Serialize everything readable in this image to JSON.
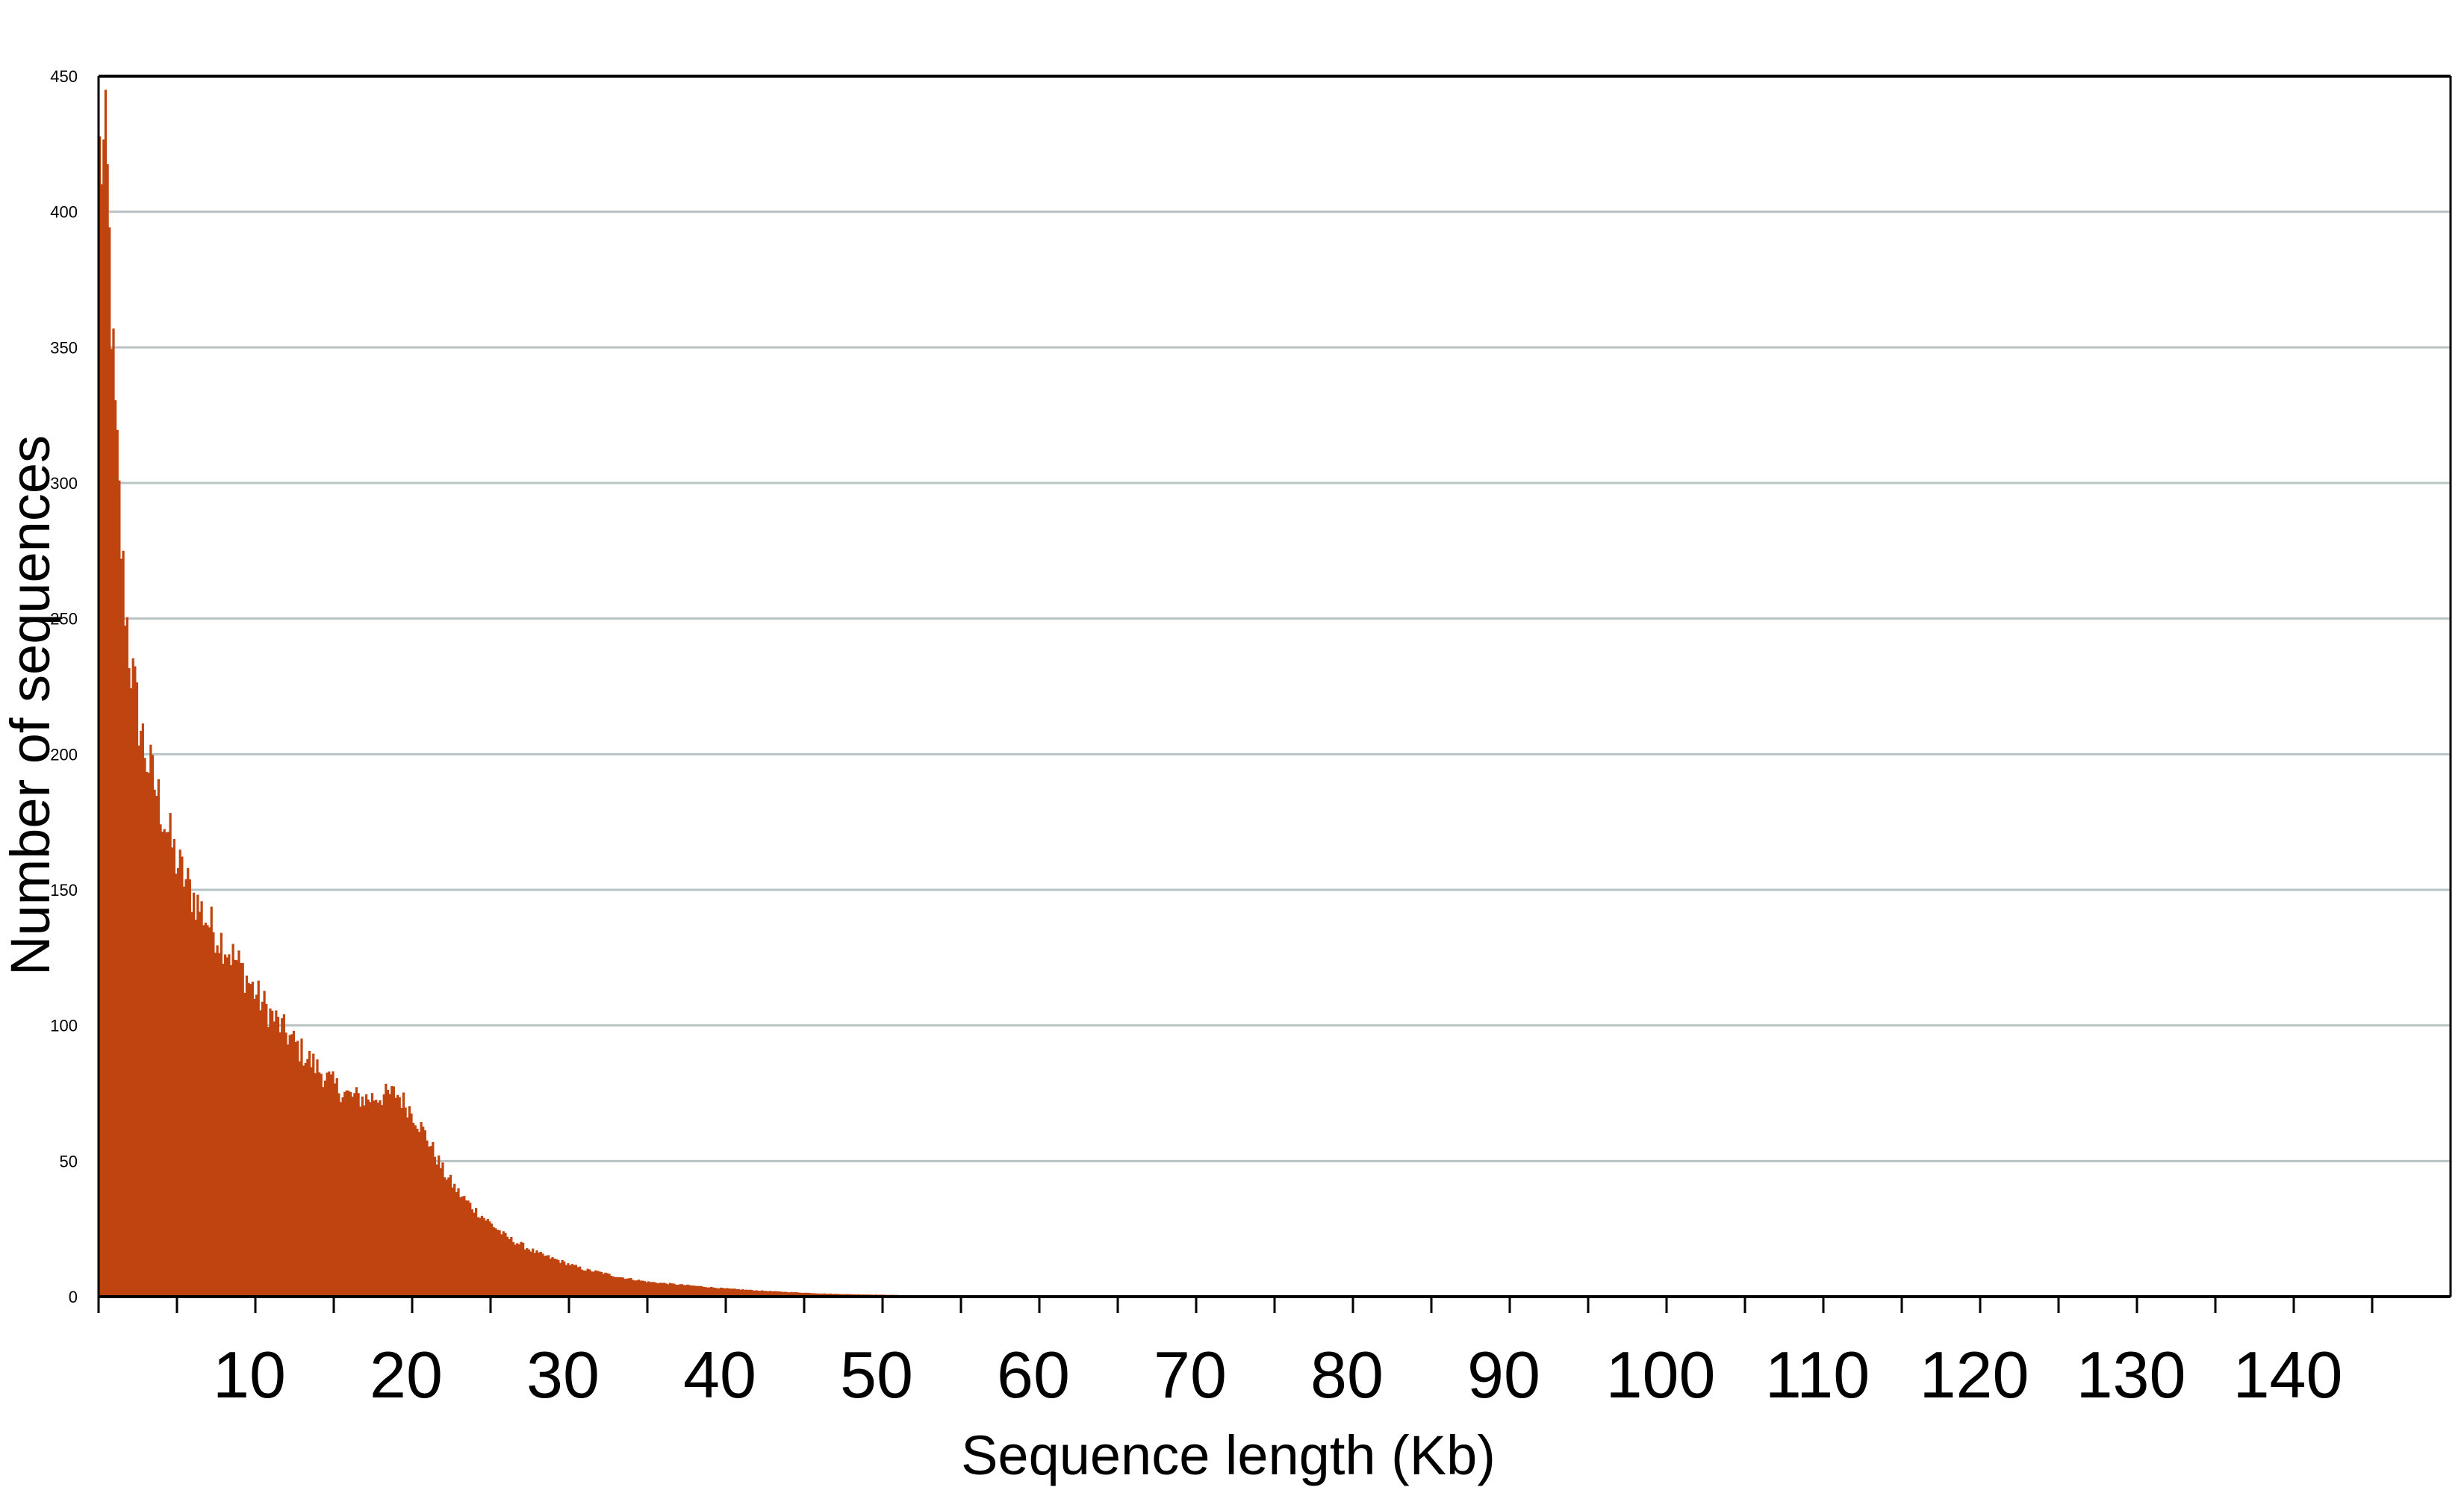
{
  "chart_data": {
    "type": "bar",
    "title": "",
    "xlabel": "Sequence length (Kb)",
    "ylabel": "Number of sequences",
    "xlim": [
      0,
      150
    ],
    "ylim": [
      0,
      450
    ],
    "x_ticks": [
      10,
      20,
      30,
      40,
      50,
      60,
      70,
      80,
      90,
      100,
      110,
      120,
      130,
      140
    ],
    "y_ticks": [
      0,
      50,
      100,
      150,
      200,
      250,
      300,
      350,
      400,
      450
    ],
    "grid": true,
    "legend": "none",
    "bar_color": "#c0440f",
    "grid_color": "#b9c3c3",
    "series": [
      {
        "bin_width_kb": 0.5,
        "x": [
          0.5,
          1,
          1.5,
          2,
          2.5,
          3,
          4,
          5,
          6,
          7,
          8,
          9,
          10,
          11,
          12,
          13,
          14,
          15,
          16,
          17,
          18,
          19,
          20,
          21,
          22,
          23,
          24,
          25,
          26,
          27,
          28,
          29,
          30,
          31,
          32,
          33,
          34,
          35,
          36,
          37,
          38,
          39,
          40,
          42,
          44,
          46,
          48,
          50,
          52,
          55,
          58,
          60,
          65,
          70,
          75,
          80,
          90,
          100,
          110,
          120,
          130,
          140,
          145
        ],
        "values": [
          420,
          330,
          270,
          235,
          215,
          200,
          180,
          160,
          148,
          138,
          130,
          122,
          112,
          104,
          97,
          90,
          84,
          78,
          74,
          73,
          74,
          75,
          68,
          58,
          46,
          38,
          32,
          27,
          22,
          19,
          16,
          14,
          12,
          10,
          9,
          7.5,
          6.5,
          5.5,
          5,
          4.5,
          4,
          3.5,
          3,
          2.3,
          1.7,
          1.2,
          0.9,
          0.7,
          0.5,
          0.35,
          0.25,
          0.2,
          0.12,
          0.08,
          0.05,
          0.04,
          0.03,
          0.02,
          0.02,
          0.01,
          0.01,
          0.01,
          0
        ]
      }
    ]
  }
}
